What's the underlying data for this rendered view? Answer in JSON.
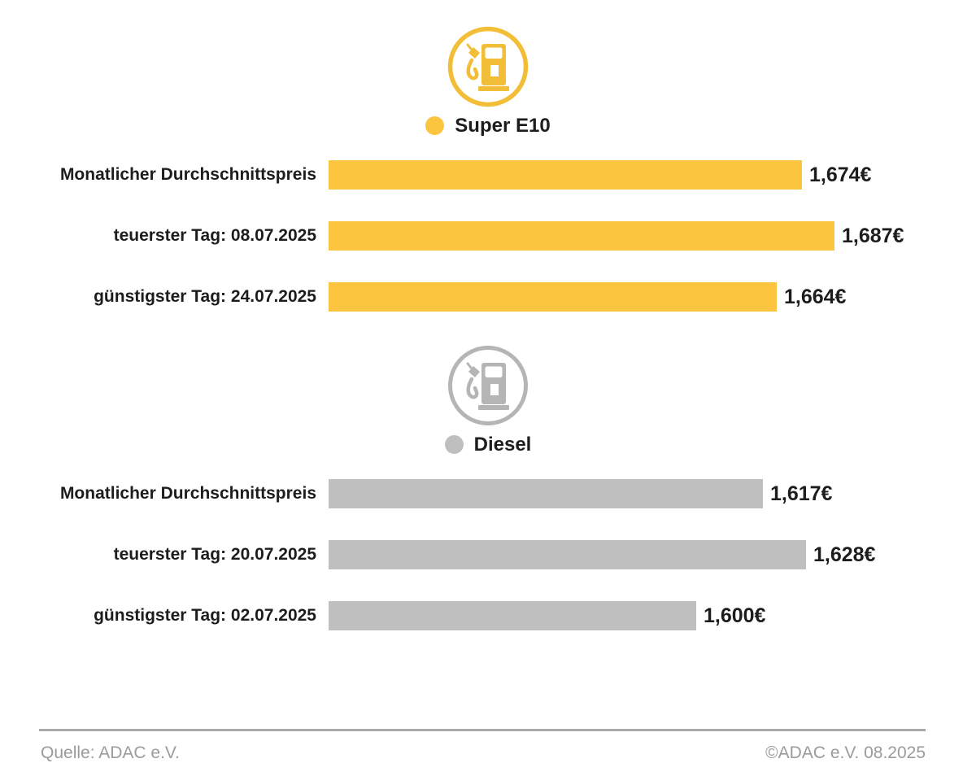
{
  "page": {
    "background": "#ffffff",
    "text_color": "#1d1d1b"
  },
  "chart_data": [
    {
      "type": "bar",
      "orientation": "horizontal",
      "title": "Super E10",
      "color": "#FBC540",
      "icon_color": "#F2BE37",
      "icon": "fuel-pump-icon",
      "categories": [
        "Monatlicher Durchschnittspreis",
        "teuerster Tag: 08.07.2025",
        "günstigster Tag: 24.07.2025"
      ],
      "values": [
        1.674,
        1.687,
        1.664
      ],
      "value_labels": [
        "1,674€",
        "1,687€",
        "1,664€"
      ],
      "xlim": [
        1.485,
        1.693
      ],
      "grid": false,
      "legend_position": "top-center"
    },
    {
      "type": "bar",
      "orientation": "horizontal",
      "title": "Diesel",
      "color": "#BFBFBF",
      "icon_color": "#B5B5B5",
      "icon": "fuel-pump-icon",
      "categories": [
        "Monatlicher Durchschnittspreis",
        "teuerster Tag: 20.07.2025",
        "günstigster Tag: 02.07.2025"
      ],
      "values": [
        1.617,
        1.628,
        1.6
      ],
      "value_labels": [
        "1,617€",
        "1,628€",
        "1,600€"
      ],
      "xlim": [
        1.506,
        1.639
      ],
      "grid": false,
      "legend_position": "top-center"
    }
  ],
  "footer": {
    "source": "Quelle: ADAC e.V.",
    "copyright": "©ADAC e.V. 08.2025"
  }
}
